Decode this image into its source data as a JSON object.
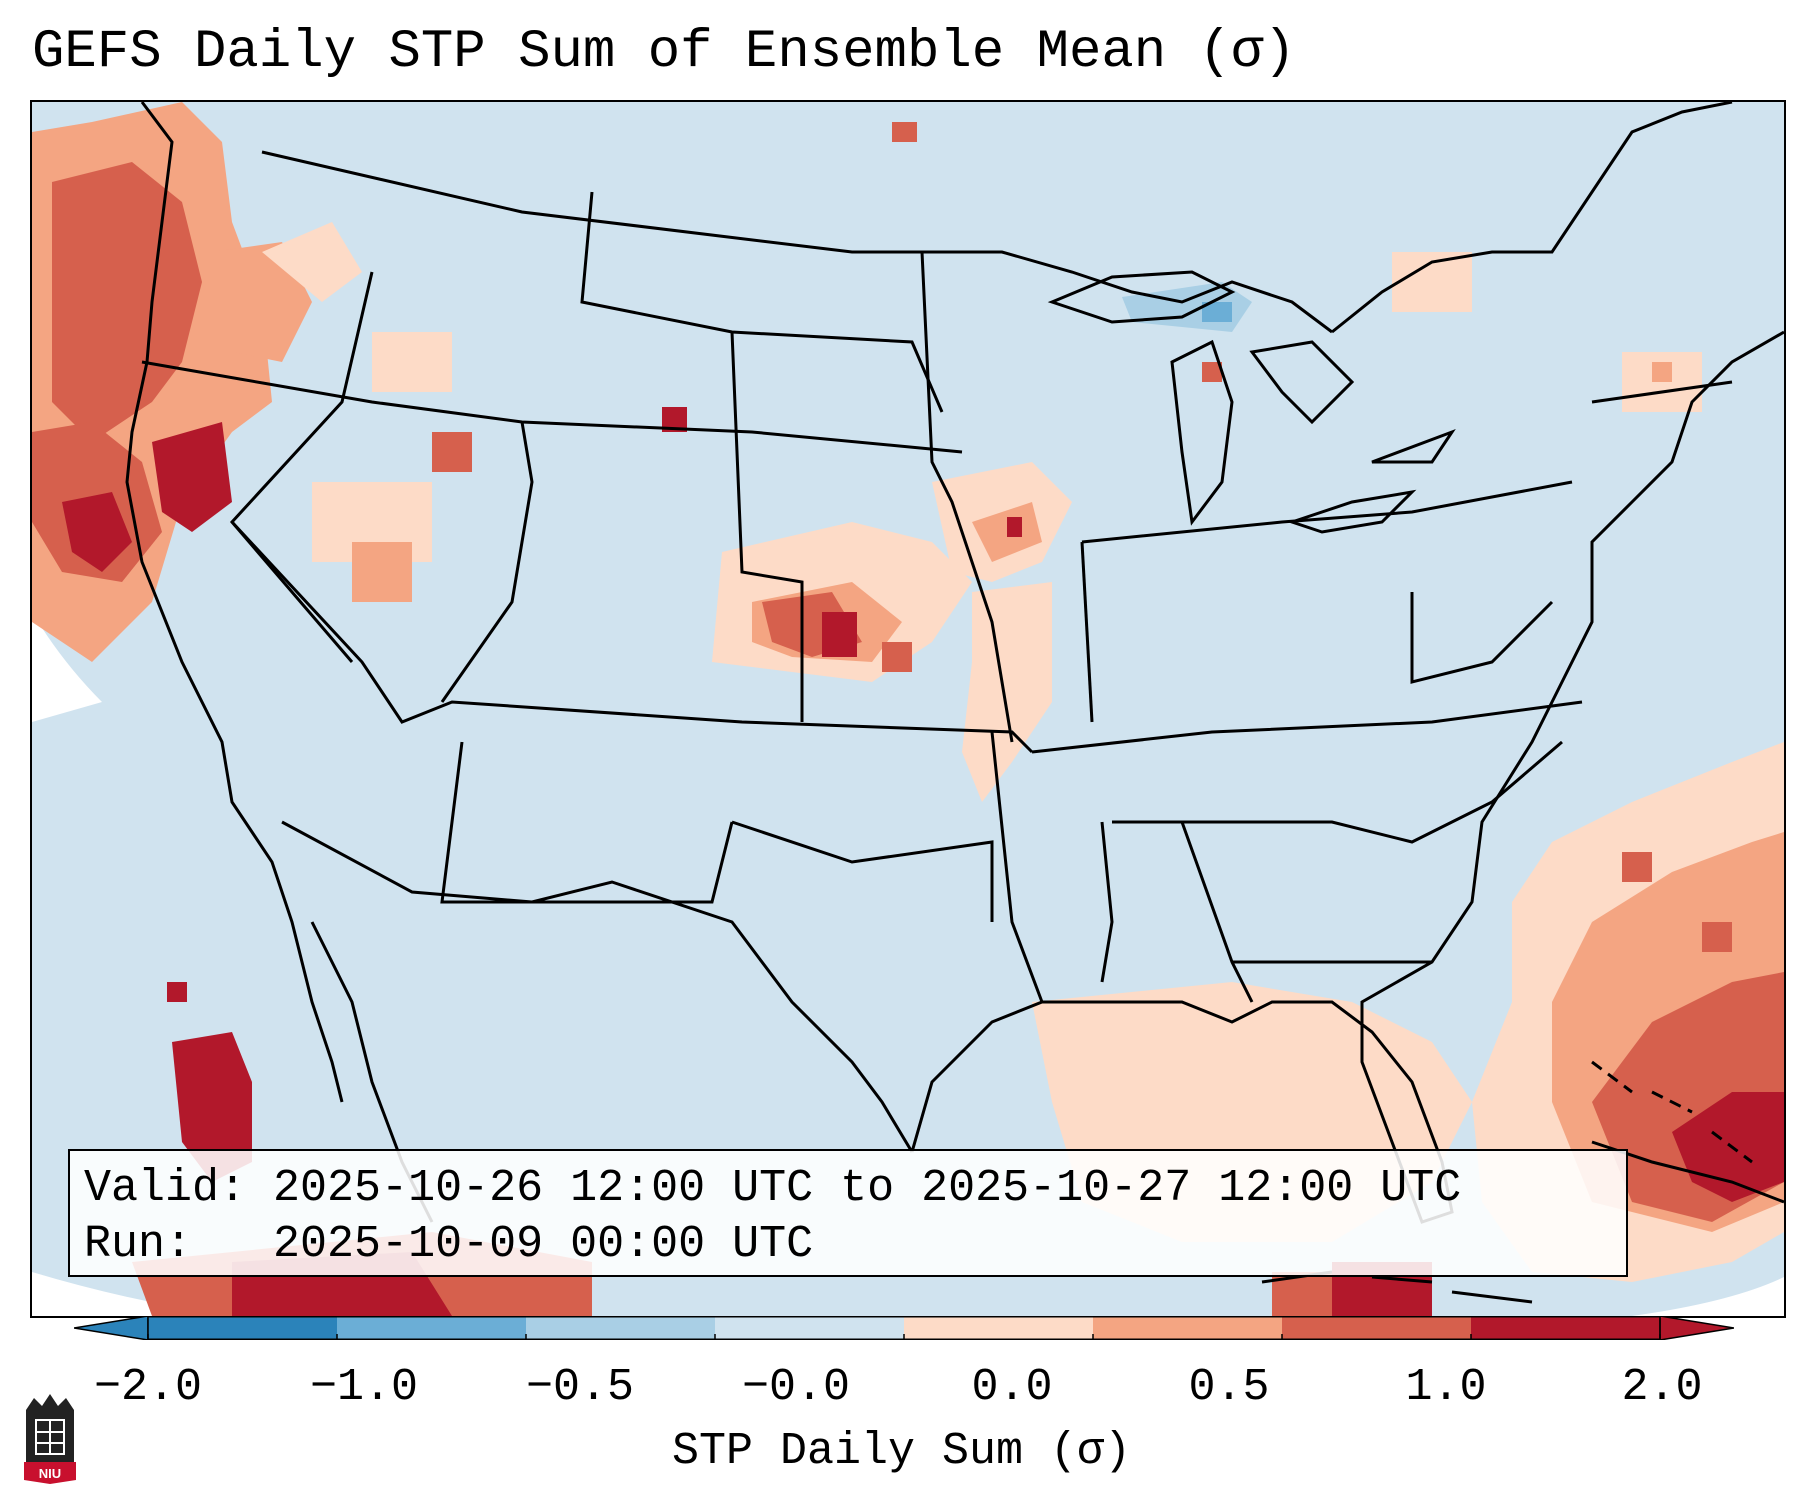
{
  "title": "GEFS Daily STP Sum of Ensemble Mean (σ)",
  "info": {
    "valid_label": "Valid:",
    "valid_value": "2025-10-26 12:00 UTC to 2025-10-27 12:00 UTC",
    "run_label": "Run:",
    "run_value": "2025-10-09 00:00 UTC"
  },
  "colorbar": {
    "label": "STP Daily Sum (σ)",
    "ticks": [
      "−2.0",
      "−1.0",
      "−0.5",
      "−0.0",
      "0.0",
      "0.5",
      "1.0",
      "2.0"
    ],
    "colors": [
      "#2b83ba",
      "#6baed6",
      "#a9cfe5",
      "#d0e3ef",
      "#fddbc7",
      "#f4a582",
      "#d6604d",
      "#b2182b"
    ],
    "extend": "both"
  },
  "logo": {
    "text": "NIU",
    "icon": "niu-logo-icon"
  },
  "map_regions": [
    {
      "name": "pacific-northwest-offshore",
      "level": 2.0
    },
    {
      "name": "oregon-california-coast",
      "level": 2.0
    },
    {
      "name": "central-plains-kansas",
      "level": 2.0
    },
    {
      "name": "iowa-missouri",
      "level": 1.0
    },
    {
      "name": "atlantic-southeast",
      "level": 1.0
    },
    {
      "name": "caribbean-bahamas",
      "level": 2.0
    },
    {
      "name": "baja-pacific",
      "level": 2.0
    },
    {
      "name": "lake-superior-michigan",
      "level": -0.5
    }
  ]
}
